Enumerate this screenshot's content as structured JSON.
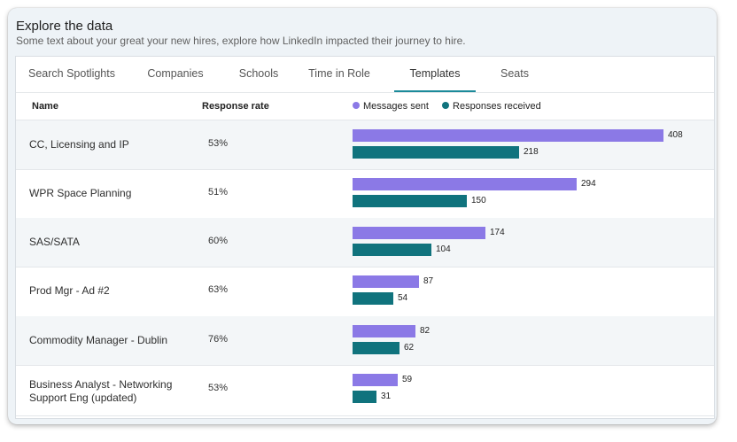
{
  "header": {
    "title": "Explore the data",
    "subtitle": "Some text about your great your new hires, explore how LinkedIn impacted their journey to hire."
  },
  "tabs": [
    {
      "label": "Search Spotlights",
      "active": false
    },
    {
      "label": "Companies",
      "active": false
    },
    {
      "label": "Schools",
      "active": false
    },
    {
      "label": "Time in Role",
      "active": false
    },
    {
      "label": "Templates",
      "active": true
    },
    {
      "label": "Seats",
      "active": false
    }
  ],
  "table": {
    "col_name": "Name",
    "col_rate": "Response rate",
    "legend": {
      "sent_label": "Messages sent",
      "received_label": "Responses received",
      "sent_color": "#8b79e6",
      "received_color": "#10737d"
    },
    "rows": [
      {
        "name": "CC, Licensing and IP",
        "rate": "53%",
        "sent": 408,
        "received": 218
      },
      {
        "name": "WPR Space Planning",
        "rate": "51%",
        "sent": 294,
        "received": 150
      },
      {
        "name": "SAS/SATA",
        "rate": "60%",
        "sent": 174,
        "received": 104
      },
      {
        "name": "Prod Mgr - Ad #2",
        "rate": "63%",
        "sent": 87,
        "received": 54
      },
      {
        "name": "Commodity Manager - Dublin",
        "rate": "76%",
        "sent": 82,
        "received": 62
      },
      {
        "name": "Business Analyst - Networking Support Eng (updated)",
        "rate": "53%",
        "sent": 59,
        "received": 31
      }
    ]
  },
  "chart_data": {
    "type": "bar",
    "categories": [
      "CC, Licensing and IP",
      "WPR Space Planning",
      "SAS/SATA",
      "Prod Mgr - Ad #2",
      "Commodity Manager - Dublin",
      "Business Analyst - Networking Support Eng (updated)"
    ],
    "series": [
      {
        "name": "Messages sent",
        "values": [
          408,
          294,
          174,
          87,
          82,
          59
        ]
      },
      {
        "name": "Responses received",
        "values": [
          218,
          150,
          104,
          54,
          62,
          31
        ]
      }
    ],
    "title": "",
    "xlabel": "",
    "ylabel": ""
  }
}
